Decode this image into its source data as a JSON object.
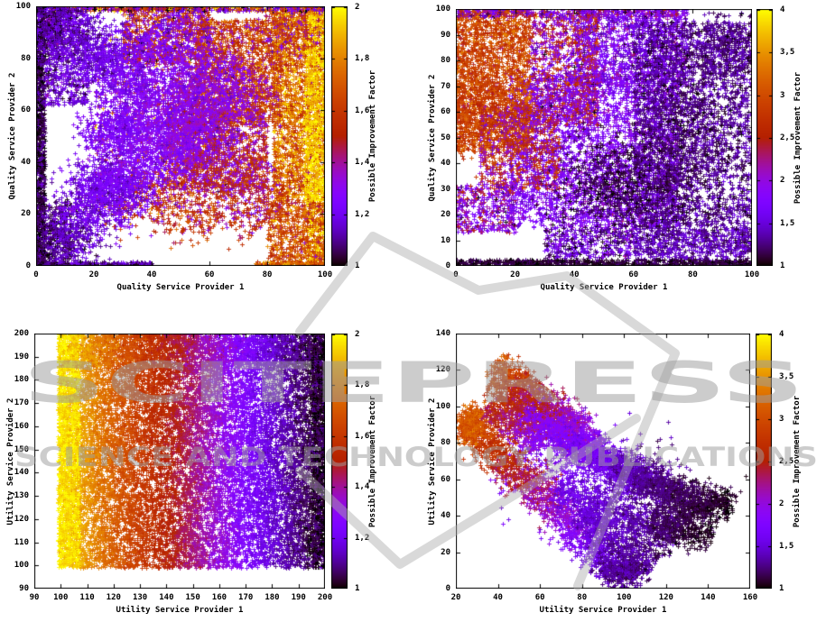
{
  "page": {
    "background": "#ffffff"
  },
  "watermark": {
    "title": "SCITEPRESS",
    "subtitle": "SCIENCE AND TECHNOLOGY PUBLICATIONS",
    "color": "#cfcfcf",
    "logo": "open-book-mark"
  },
  "palette": {
    "name": "gnuplot rgbformulae 7,5,15 (black-purple-red-orange-yellow)",
    "stops": [
      "#000000",
      "#5a00b4",
      "#8004ff",
      "#9c0db4",
      "#b42000",
      "#ca3e00",
      "#dd6c00",
      "#efab00",
      "#ffff00"
    ]
  },
  "chart_data": [
    {
      "id": "quality-vs-quality-factor-2",
      "type": "scatter",
      "marker": "+",
      "grid": false,
      "xlabel": "Quality Service Provider 1",
      "ylabel": "Quality Service Provider 2",
      "xlim": [
        0,
        100
      ],
      "ylim": [
        0,
        100
      ],
      "xticks": [
        0,
        20,
        40,
        60,
        80,
        100
      ],
      "yticks": [
        0,
        20,
        40,
        60,
        80,
        100
      ],
      "colorbar": {
        "label": "Possible Improvement Factor",
        "min": 1,
        "max": 2,
        "tick_values": [
          1,
          1.2,
          1.4,
          1.6,
          1.8,
          2
        ],
        "tick_labels": [
          "1",
          "1,2",
          "1,4",
          "1,6",
          "1,8",
          "2"
        ]
      },
      "clusters": [
        {
          "kind": "band",
          "x": [
            82,
            100
          ],
          "y": [
            25,
            100
          ],
          "n": 2000,
          "v": 1.75,
          "vs": 0.14
        },
        {
          "kind": "band",
          "x": [
            93,
            100
          ],
          "y": [
            0,
            100
          ],
          "n": 1000,
          "v": 1.93,
          "vs": 0.07
        },
        {
          "kind": "band",
          "x": [
            80,
            100
          ],
          "y": [
            0,
            25
          ],
          "n": 650,
          "v": 1.65,
          "vs": 0.12
        },
        {
          "kind": "band",
          "x": [
            55,
            85
          ],
          "y": [
            55,
            95
          ],
          "n": 1500,
          "v": 1.6,
          "vs": 0.14
        },
        {
          "kind": "band",
          "x": [
            30,
            60
          ],
          "y": [
            78,
            100
          ],
          "n": 850,
          "v": 1.47,
          "vs": 0.18
        },
        {
          "kind": "band",
          "x": [
            45,
            80
          ],
          "y": [
            30,
            60
          ],
          "n": 950,
          "v": 1.5,
          "vs": 0.15
        },
        {
          "kind": "streak",
          "p": [
            30,
            30,
            62,
            17
          ],
          "w": 6,
          "n": 420,
          "v": [
            1.5,
            1.6
          ],
          "vs": 0.1
        },
        {
          "kind": "band",
          "x": [
            20,
            80
          ],
          "y": [
            15,
            95
          ],
          "n": 650,
          "v": 1.5,
          "vs": 0.2
        },
        {
          "kind": "blob",
          "c": [
            88,
            90
          ],
          "s": [
            6,
            5
          ],
          "n": 260,
          "v": 1.55,
          "vs": 0.18
        },
        {
          "kind": "band",
          "x": [
            0,
            100
          ],
          "y": [
            98.2,
            100
          ],
          "n": 520,
          "v": 1.4,
          "vs": 0.28
        },
        {
          "kind": "band",
          "x": [
            0,
            40
          ],
          "y": [
            0,
            1.6
          ],
          "n": 260,
          "v": 1.12,
          "vs": 0.08
        },
        {
          "kind": "band",
          "x": [
            76,
            100
          ],
          "y": [
            0,
            1.6
          ],
          "n": 160,
          "v": 1.7,
          "vs": 0.1
        },
        {
          "kind": "band",
          "x": [
            0,
            3
          ],
          "y": [
            0,
            100
          ],
          "n": 1100,
          "v": 1.04,
          "vs": 0.05
        },
        {
          "kind": "blob",
          "c": [
            5,
            91
          ],
          "s": [
            3,
            6
          ],
          "n": 350,
          "v": 1.1,
          "vs": 0.06
        },
        {
          "kind": "blob",
          "c": [
            6,
            10
          ],
          "s": [
            4,
            7
          ],
          "n": 420,
          "v": 1.07,
          "vs": 0.05
        },
        {
          "kind": "blob",
          "c": [
            12,
            14
          ],
          "s": [
            5,
            7
          ],
          "n": 360,
          "v": 1.14,
          "vs": 0.06
        },
        {
          "kind": "blob",
          "c": [
            18,
            23
          ],
          "s": [
            6,
            7
          ],
          "n": 320,
          "v": 1.2,
          "vs": 0.07
        },
        {
          "kind": "band",
          "x": [
            3,
            18
          ],
          "y": [
            62,
            100
          ],
          "n": 600,
          "v": 1.16,
          "vs": 0.09
        },
        {
          "kind": "streak",
          "p": [
            7,
            97,
            40,
            62
          ],
          "w": 6,
          "n": 900,
          "v": [
            1.12,
            1.27
          ],
          "vs": 0.06
        },
        {
          "kind": "streak",
          "p": [
            19,
            84,
            46,
            56
          ],
          "w": 6,
          "n": 650,
          "v": [
            1.18,
            1.3
          ],
          "vs": 0.06
        },
        {
          "kind": "blob",
          "c": [
            28,
            52
          ],
          "s": [
            6,
            5
          ],
          "n": 520,
          "v": 1.24,
          "vs": 0.05
        },
        {
          "kind": "blob",
          "c": [
            25,
            32
          ],
          "s": [
            6,
            6
          ],
          "n": 480,
          "v": 1.2,
          "vs": 0.06
        },
        {
          "kind": "streak",
          "p": [
            22,
            24,
            52,
            50
          ],
          "w": 7,
          "n": 820,
          "v": [
            1.22,
            1.3
          ],
          "vs": 0.06
        },
        {
          "kind": "blob",
          "c": [
            50,
            50
          ],
          "s": [
            8,
            7
          ],
          "n": 720,
          "v": 1.28,
          "vs": 0.06
        },
        {
          "kind": "streak",
          "p": [
            52,
            52,
            74,
            76
          ],
          "w": 7,
          "n": 650,
          "v": [
            1.3,
            1.36
          ],
          "vs": 0.07
        },
        {
          "kind": "streak",
          "p": [
            40,
            92,
            58,
            68
          ],
          "w": 7,
          "n": 620,
          "v": [
            1.25,
            1.32
          ],
          "vs": 0.07
        },
        {
          "kind": "blob",
          "c": [
            57,
            63
          ],
          "s": [
            7,
            7
          ],
          "n": 420,
          "v": 1.3,
          "vs": 0.08
        },
        {
          "kind": "streak",
          "p": [
            55,
            45,
            82,
            20
          ],
          "w": 8,
          "n": 750,
          "v": [
            1.38,
            1.52
          ],
          "vs": 0.12
        }
      ]
    },
    {
      "id": "quality-vs-quality-factor-4",
      "type": "scatter",
      "marker": "+",
      "grid": false,
      "xlabel": "Quality Service Provider 1",
      "ylabel": "Quality Service Provider 2",
      "xlim": [
        0,
        100
      ],
      "ylim": [
        0,
        100
      ],
      "xticks": [
        0,
        20,
        40,
        60,
        80,
        100
      ],
      "yticks": [
        0,
        10,
        20,
        30,
        40,
        50,
        60,
        70,
        80,
        90,
        100
      ],
      "colorbar": {
        "label": "Possible Improvement Factor",
        "min": 1,
        "max": 4,
        "tick_values": [
          1,
          1.5,
          2,
          2.5,
          3,
          3.5,
          4
        ],
        "tick_labels": [
          "1",
          "1,5",
          "2",
          "2,5",
          "3",
          "3,5",
          "4"
        ]
      },
      "clusters": [
        {
          "kind": "band",
          "x": [
            18,
            75
          ],
          "y": [
            15,
            75
          ],
          "n": 3200,
          "v": 1.75,
          "vs": 0.2
        },
        {
          "kind": "band",
          "x": [
            40,
            78
          ],
          "y": [
            70,
            100
          ],
          "n": 1300,
          "v": 1.7,
          "vs": 0.25
        },
        {
          "kind": "band",
          "x": [
            60,
            100
          ],
          "y": [
            5,
            95
          ],
          "n": 2800,
          "v": 1.3,
          "vs": 0.15
        },
        {
          "kind": "blob",
          "c": [
            76,
            50
          ],
          "s": [
            8,
            16
          ],
          "n": 650,
          "v": 1.2,
          "vs": 0.1
        },
        {
          "kind": "blob",
          "c": [
            90,
            85
          ],
          "s": [
            7,
            7
          ],
          "n": 420,
          "v": 1.25,
          "vs": 0.12
        },
        {
          "kind": "blob",
          "c": [
            55,
            30
          ],
          "s": [
            10,
            10
          ],
          "n": 750,
          "v": 1.15,
          "vs": 0.1
        },
        {
          "kind": "band",
          "x": [
            0,
            25
          ],
          "y": [
            45,
            100
          ],
          "n": 2000,
          "v": 2.9,
          "vs": 0.25
        },
        {
          "kind": "blob",
          "c": [
            6,
            62
          ],
          "s": [
            6,
            10
          ],
          "n": 420,
          "v": 2.8,
          "vs": 0.2
        },
        {
          "kind": "band",
          "x": [
            8,
            35
          ],
          "y": [
            30,
            62
          ],
          "n": 700,
          "v": 2.4,
          "vs": 0.4
        },
        {
          "kind": "band",
          "x": [
            25,
            48
          ],
          "y": [
            55,
            97
          ],
          "n": 1000,
          "v": 2.15,
          "vs": 0.45
        },
        {
          "kind": "band",
          "x": [
            0,
            20
          ],
          "y": [
            13,
            32
          ],
          "n": 420,
          "v": 1.9,
          "vs": 0.4
        },
        {
          "kind": "band",
          "x": [
            30,
            60
          ],
          "y": [
            3,
            15
          ],
          "n": 380,
          "v": 1.5,
          "vs": 0.3
        },
        {
          "kind": "band",
          "x": [
            60,
            100
          ],
          "y": [
            1,
            15
          ],
          "n": 450,
          "v": 1.4,
          "vs": 0.15
        },
        {
          "kind": "band",
          "x": [
            0,
            100
          ],
          "y": [
            0,
            2.5
          ],
          "n": 750,
          "v": 1.1,
          "vs": 0.08
        },
        {
          "kind": "band",
          "x": [
            0,
            75
          ],
          "y": [
            97,
            100
          ],
          "n": 350,
          "v": 2.0,
          "vs": 0.5
        }
      ]
    },
    {
      "id": "utility-vs-utility-factor-2",
      "type": "scatter",
      "marker": "+",
      "grid": false,
      "xlabel": "Utility Service Provider 1",
      "ylabel": "Utility Service Provider 2",
      "xlim": [
        90,
        200
      ],
      "ylim": [
        90,
        200
      ],
      "xticks": [
        90,
        100,
        110,
        120,
        130,
        140,
        150,
        160,
        170,
        180,
        190,
        200
      ],
      "yticks": [
        90,
        100,
        110,
        120,
        130,
        140,
        150,
        160,
        170,
        180,
        190,
        200
      ],
      "colorbar": {
        "label": "Possible Improvement Factor",
        "min": 1,
        "max": 2,
        "tick_values": [
          1,
          1.2,
          1.4,
          1.6,
          1.8,
          2
        ],
        "tick_labels": [
          "1",
          "1,2",
          "1,4",
          "1,6",
          "1,8",
          "2"
        ]
      },
      "clusters": [
        {
          "kind": "xgrad",
          "x": [
            99,
            200
          ],
          "y": [
            99,
            200
          ],
          "n": 15000,
          "v": [
            2,
            1
          ],
          "g": 0.8,
          "vs": 0.03
        },
        {
          "kind": "band",
          "x": [
            99,
            107
          ],
          "y": [
            99,
            200
          ],
          "n": 1200,
          "v": 1.96,
          "vs": 0.04
        },
        {
          "kind": "band",
          "x": [
            195,
            200
          ],
          "y": [
            99,
            200
          ],
          "n": 700,
          "v": 1.04,
          "vs": 0.04
        },
        {
          "kind": "xgrad",
          "x": [
            100,
            200
          ],
          "y": [
            185,
            200
          ],
          "n": 900,
          "v": [
            2,
            1
          ],
          "g": 0.8,
          "vs": 0.05
        }
      ]
    },
    {
      "id": "utility-vs-utility-factor-4",
      "type": "scatter",
      "marker": "+",
      "grid": false,
      "xlabel": "Utility Service Provider 1",
      "ylabel": "Utility Service Provider 2",
      "xlim": [
        20,
        160
      ],
      "ylim": [
        0,
        140
      ],
      "xticks": [
        20,
        40,
        60,
        80,
        100,
        120,
        140,
        160
      ],
      "yticks": [
        0,
        20,
        40,
        60,
        80,
        100,
        120,
        140
      ],
      "colorbar": {
        "label": "Possible Improvement Factor",
        "min": 1,
        "max": 4,
        "tick_values": [
          1,
          1.5,
          2,
          2.5,
          3,
          3.5,
          4
        ],
        "tick_labels": [
          "1",
          "1,5",
          "2",
          "2,5",
          "3",
          "3,5",
          "4"
        ]
      },
      "clusters": [
        {
          "kind": "streak",
          "p": [
            45,
            80,
            130,
            35
          ],
          "w": 14,
          "n": 650,
          "v": [
            1.8,
            1.2
          ],
          "vs": 0.15
        },
        {
          "kind": "streak",
          "p": [
            25,
            92,
            100,
            6
          ],
          "w": 5,
          "n": 1700,
          "v": [
            3.0,
            1.3
          ],
          "vs": 0.15
        },
        {
          "kind": "streak",
          "p": [
            33,
            100,
            60,
            78
          ],
          "w": 3,
          "n": 320,
          "v": [
            2.5,
            1.9
          ],
          "vs": 0.15
        },
        {
          "kind": "streak",
          "p": [
            38,
            124,
            80,
            88
          ],
          "w": 4,
          "n": 700,
          "v": [
            3.0,
            1.9
          ],
          "vs": 0.18
        },
        {
          "kind": "streak",
          "p": [
            36,
            113,
            88,
            78
          ],
          "w": 4,
          "n": 700,
          "v": [
            2.8,
            1.8
          ],
          "vs": 0.18
        },
        {
          "kind": "streak",
          "p": [
            40,
            104,
            95,
            68
          ],
          "w": 4,
          "n": 700,
          "v": [
            2.6,
            1.7
          ],
          "vs": 0.18
        },
        {
          "kind": "streak",
          "p": [
            52,
            98,
            105,
            60
          ],
          "w": 4,
          "n": 520,
          "v": [
            1.9,
            1.55
          ],
          "vs": 0.12
        },
        {
          "kind": "streak",
          "p": [
            60,
            88,
            115,
            55
          ],
          "w": 5,
          "n": 620,
          "v": [
            1.8,
            1.45
          ],
          "vs": 0.12
        },
        {
          "kind": "streak",
          "p": [
            68,
            55,
            125,
            28
          ],
          "w": 5,
          "n": 700,
          "v": [
            1.6,
            1.2
          ],
          "vs": 0.1
        },
        {
          "kind": "streak",
          "p": [
            80,
            42,
            112,
            12
          ],
          "w": 5,
          "n": 600,
          "v": [
            1.5,
            1.22
          ],
          "vs": 0.1
        },
        {
          "kind": "streak",
          "p": [
            95,
            70,
            140,
            42
          ],
          "w": 5,
          "n": 700,
          "v": [
            1.4,
            1.1
          ],
          "vs": 0.08
        },
        {
          "kind": "streak",
          "p": [
            105,
            60,
            152,
            44
          ],
          "w": 5,
          "n": 620,
          "v": [
            1.3,
            1.02
          ],
          "vs": 0.06
        },
        {
          "kind": "streak",
          "p": [
            112,
            38,
            142,
            29
          ],
          "w": 5,
          "n": 420,
          "v": [
            1.2,
            1.05
          ],
          "vs": 0.06
        },
        {
          "kind": "blob",
          "c": [
            100,
            10
          ],
          "s": [
            6,
            4
          ],
          "n": 300,
          "v": 1.3,
          "vs": 0.1
        },
        {
          "kind": "blob",
          "c": [
            27,
            90
          ],
          "s": [
            3,
            5
          ],
          "n": 380,
          "v": 3.1,
          "vs": 0.15
        }
      ]
    }
  ]
}
